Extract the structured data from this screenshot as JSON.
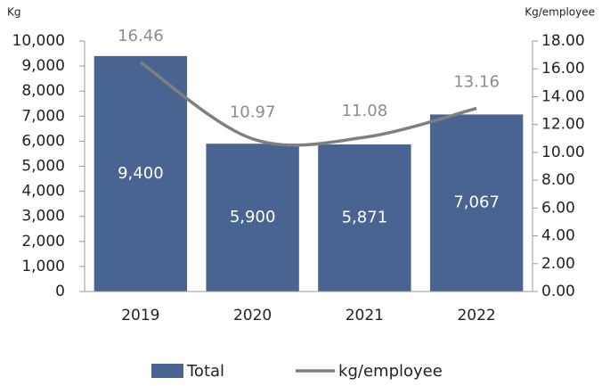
{
  "chart_data": {
    "type": "bar",
    "ylabel": "Kg",
    "y2label": "Kg/employee",
    "categories": [
      "2019",
      "2020",
      "2021",
      "2022"
    ],
    "series": [
      {
        "name": "Total",
        "type": "bar",
        "color": "#4a6491",
        "values": [
          9400,
          5900,
          5871,
          7067
        ],
        "value_labels": [
          "9,400",
          "5,900",
          "5,871",
          "7,067"
        ]
      },
      {
        "name": "kg/employee",
        "type": "line",
        "axis": "y2",
        "color": "#7f7f7f",
        "values": [
          16.46,
          10.97,
          11.08,
          13.16
        ]
      }
    ],
    "ylim": [
      0,
      10000
    ],
    "yticks": [
      0,
      {
        "value": 1000,
        "label": "1,000"
      },
      {
        "value": 2000,
        "label": "2,000"
      },
      {
        "value": 3000,
        "label": "3,000"
      },
      {
        "value": 4000,
        "label": "4,000"
      },
      {
        "value": 5000,
        "label": "5,000"
      },
      {
        "value": 6000,
        "label": "6,000"
      },
      {
        "value": 7000,
        "label": "7,000"
      },
      {
        "value": 8000,
        "label": "8,000"
      },
      {
        "value": 9000,
        "label": "9,000"
      },
      {
        "value": 10000,
        "label": "10,000"
      }
    ],
    "y2lim": [
      0,
      18
    ],
    "y2ticks": [
      {
        "value": 0,
        "label": "0.00"
      },
      {
        "value": 2,
        "label": "2.00"
      },
      {
        "value": 4,
        "label": "4.00"
      },
      {
        "value": 6,
        "label": "6.00"
      },
      {
        "value": 8,
        "label": "8.00"
      },
      {
        "value": 10,
        "label": "10.00"
      },
      {
        "value": 12,
        "label": "12.00"
      },
      {
        "value": 14,
        "label": "14.00"
      },
      {
        "value": 16,
        "label": "16.00"
      },
      {
        "value": 18,
        "label": "18.00"
      }
    ],
    "legend": "bottom"
  }
}
